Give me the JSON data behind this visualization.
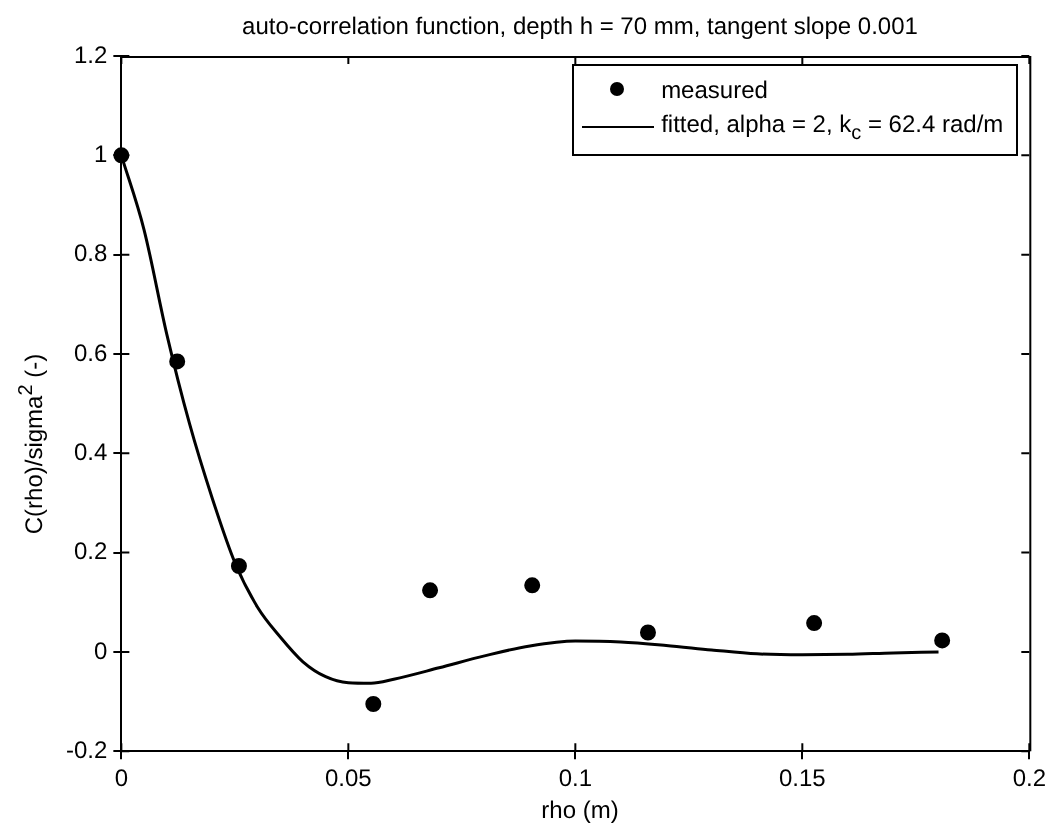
{
  "chart_data": {
    "type": "scatter",
    "title": "auto-correlation function, depth h = 70 mm, tangent slope 0.001",
    "xlabel": "rho (m)",
    "ylabel": "C(rho)/sigma$^{2}$ (-)",
    "xlim": [
      0,
      0.2
    ],
    "xticks": [
      0,
      0.05,
      0.1,
      0.15,
      0.2
    ],
    "ylim": [
      -0.2,
      1.2
    ],
    "yticks": [
      -0.2,
      0,
      0.2,
      0.4,
      0.6,
      0.8,
      1,
      1.2
    ],
    "grid": false,
    "legend": "top right",
    "series": [
      {
        "name": "measured",
        "type": "scatter",
        "marker": "circle",
        "color": "#000000",
        "x": [
          0,
          0.0123,
          0.0259,
          0.0555,
          0.068,
          0.0905,
          0.116,
          0.1526,
          0.1808
        ],
        "values": [
          1,
          0.585,
          0.173,
          -0.105,
          0.124,
          0.134,
          0.039,
          0.058,
          0.023
        ]
      },
      {
        "name": "fitted, alpha = 2, k$_{c}$ = 62.4 rad/m",
        "type": "line",
        "marker": "none",
        "line_style": "solid",
        "color": "#000000",
        "x": [
          0,
          0.005,
          0.01,
          0.015,
          0.02,
          0.025,
          0.03,
          0.035,
          0.04,
          0.045,
          0.05,
          0.055,
          0.06,
          0.07,
          0.08,
          0.09,
          0.1,
          0.11,
          0.12,
          0.13,
          0.14,
          0.15,
          0.16,
          0.17,
          0.18
        ],
        "values": [
          1,
          0.85,
          0.64,
          0.46,
          0.31,
          0.18,
          0.09,
          0.03,
          -0.02,
          -0.05,
          -0.062,
          -0.063,
          -0.055,
          -0.032,
          -0.008,
          0.012,
          0.022,
          0.02,
          0.013,
          0.004,
          -0.004,
          -0.006,
          -0.005,
          -0.002,
          0
        ]
      }
    ]
  }
}
